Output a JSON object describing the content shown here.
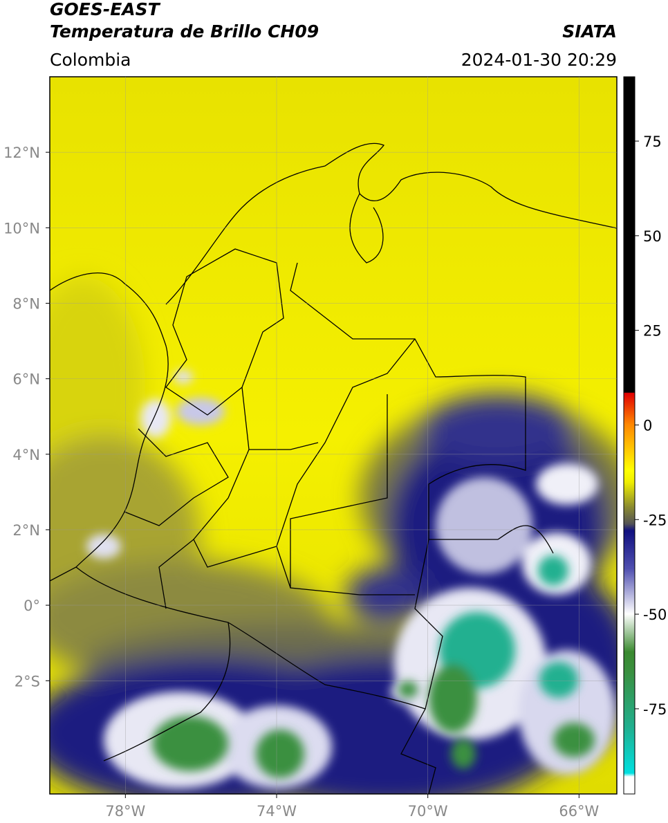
{
  "header": {
    "title": "GOES-EAST",
    "subtitle": "Temperatura de Brillo CH09",
    "region": "Colombia",
    "source": "SIATA",
    "datetime": "2024-01-30 20:29"
  },
  "map": {
    "xlim": [
      -80,
      -65
    ],
    "ylim": [
      -5,
      14
    ],
    "xticks": [
      {
        "value": -78,
        "label": "78°W"
      },
      {
        "value": -74,
        "label": "74°W"
      },
      {
        "value": -70,
        "label": "70°W"
      },
      {
        "value": -66,
        "label": "66°W"
      }
    ],
    "yticks": [
      {
        "value": 12,
        "label": "12°N"
      },
      {
        "value": 10,
        "label": "10°N"
      },
      {
        "value": 8,
        "label": "8°N"
      },
      {
        "value": 6,
        "label": "6°N"
      },
      {
        "value": 4,
        "label": "4°N"
      },
      {
        "value": 2,
        "label": "2°N"
      },
      {
        "value": 0,
        "label": "0°"
      },
      {
        "value": -2,
        "label": "2°S"
      }
    ],
    "grid": true
  },
  "colorbar": {
    "lim": [
      -97.5,
      92
    ],
    "ticks": [
      75,
      50,
      25,
      0,
      -25,
      -50,
      -75
    ]
  }
}
